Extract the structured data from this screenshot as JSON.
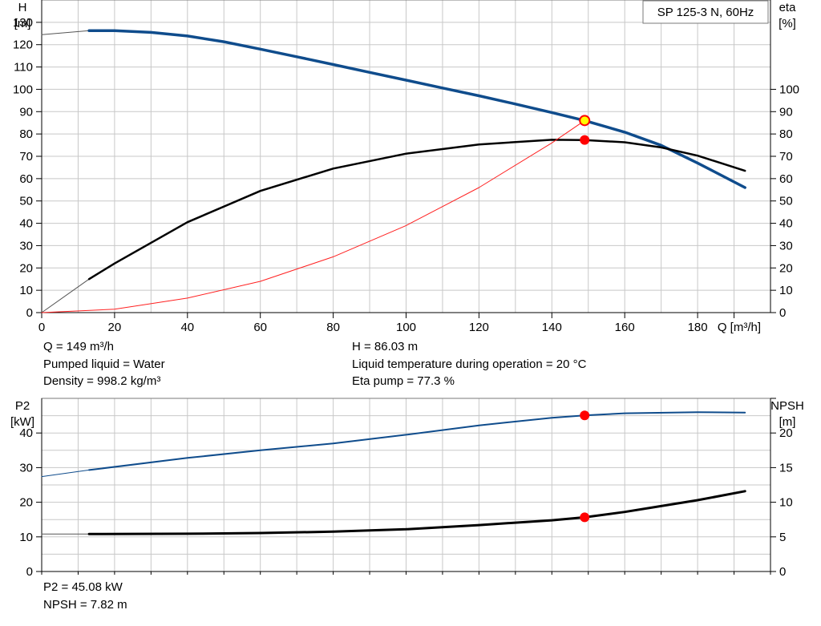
{
  "info": {
    "q": "Q = 149 m³/h",
    "pumped_liquid": "Pumped liquid = Water",
    "density": "Density = 998.2 kg/m³",
    "h": "H = 86.03 m",
    "liquid_temp": "Liquid temperature during operation = 20 °C",
    "eta_pump": "Eta pump = 77.3 %",
    "p2": "P2 = 45.08 kW",
    "npsh": "NPSH = 7.82 m"
  },
  "colors": {
    "head_curve": "#0f4c8c",
    "efficiency_curve": "#000000",
    "system_curve": "#ff2020",
    "duty_point": "#ff0000",
    "duty_marker_fill": "#ffff00",
    "grid": "#c8c8c8"
  },
  "chart_data": [
    {
      "type": "line",
      "title": "SP 125-3 N, 60Hz",
      "xlabel": "Q [m³/h]",
      "ylabel_left": [
        "H",
        "[m]"
      ],
      "ylabel_right": [
        "eta",
        "[%]"
      ],
      "xlim": [
        0,
        200
      ],
      "ylim_left": [
        0,
        140
      ],
      "ylim_right": [
        0,
        140
      ],
      "xticks": [
        0,
        20,
        40,
        60,
        80,
        100,
        120,
        140,
        160,
        180
      ],
      "yticks_left": [
        0,
        10,
        20,
        30,
        40,
        50,
        60,
        70,
        80,
        90,
        100,
        110,
        120,
        130
      ],
      "yticks_right": [
        0,
        10,
        20,
        30,
        40,
        50,
        60,
        70,
        80,
        90,
        100
      ],
      "grid": true,
      "series": [
        {
          "key": "head_ext",
          "axis": "left",
          "style": "thin",
          "x": [
            0,
            13
          ],
          "y": [
            124.5,
            126.3
          ]
        },
        {
          "key": "head",
          "axis": "left",
          "style": "head",
          "x": [
            13,
            20,
            30,
            40,
            50,
            60,
            70,
            80,
            90,
            100,
            110,
            120,
            130,
            140,
            149,
            160,
            170,
            180,
            193
          ],
          "y": [
            126.3,
            126.3,
            125.5,
            123.9,
            121.3,
            118.0,
            114.6,
            111.1,
            107.6,
            104.1,
            100.6,
            97.1,
            93.4,
            89.6,
            86.0,
            80.8,
            74.9,
            67.0,
            56.0
          ]
        },
        {
          "key": "eta_ext",
          "axis": "right",
          "style": "thin",
          "x": [
            0,
            13
          ],
          "y": [
            0,
            15
          ]
        },
        {
          "key": "eta",
          "axis": "right",
          "style": "eta",
          "x": [
            13,
            20,
            40,
            60,
            80,
            100,
            120,
            140,
            149,
            160,
            170,
            180,
            193
          ],
          "y": [
            15.0,
            22.0,
            40.5,
            54.5,
            64.5,
            71.2,
            75.3,
            77.4,
            77.3,
            76.3,
            74.0,
            70.3,
            63.5
          ]
        },
        {
          "key": "system",
          "axis": "left",
          "style": "system",
          "x": [
            0,
            20,
            40,
            60,
            80,
            100,
            120,
            140,
            149
          ],
          "y": [
            0,
            1.5,
            6.5,
            14.0,
            25.0,
            39.0,
            56.0,
            76.0,
            86.0
          ]
        }
      ],
      "points": [
        {
          "key": "duty-head",
          "axis": "left",
          "x": 149,
          "y": 86.03,
          "style": "duty-yellow"
        },
        {
          "key": "duty-eta",
          "axis": "right",
          "x": 149,
          "y": 77.3,
          "style": "duty-red"
        }
      ]
    },
    {
      "type": "line",
      "xlim": [
        0,
        200
      ],
      "ylabel_left": [
        "P2",
        "[kW]"
      ],
      "ylabel_right": [
        "NPSH",
        "[m]"
      ],
      "ylim_left": [
        0,
        50
      ],
      "ylim_right": [
        0,
        25
      ],
      "yticks_left": [
        0,
        10,
        20,
        30,
        40
      ],
      "yticks_right": [
        0,
        5,
        10,
        15,
        20
      ],
      "grid": true,
      "series": [
        {
          "key": "p2_ext",
          "axis": "left",
          "style": "thin-blue",
          "x": [
            0,
            13
          ],
          "y": [
            27.4,
            29.3
          ]
        },
        {
          "key": "p2",
          "axis": "left",
          "style": "p2",
          "x": [
            13,
            40,
            60,
            80,
            100,
            120,
            140,
            149,
            160,
            180,
            193
          ],
          "y": [
            29.3,
            32.8,
            35.0,
            37.0,
            39.5,
            42.2,
            44.4,
            45.08,
            45.7,
            46.0,
            45.9
          ]
        },
        {
          "key": "npsh_ext",
          "axis": "right",
          "style": "thin",
          "x": [
            0,
            13
          ],
          "y": [
            5.4,
            5.4
          ]
        },
        {
          "key": "npsh",
          "axis": "right",
          "style": "npsh",
          "x": [
            13,
            40,
            60,
            80,
            100,
            120,
            140,
            149,
            160,
            180,
            193
          ],
          "y": [
            5.4,
            5.45,
            5.55,
            5.75,
            6.1,
            6.7,
            7.4,
            7.82,
            8.6,
            10.3,
            11.6
          ]
        }
      ],
      "points": [
        {
          "key": "duty-p2",
          "axis": "left",
          "x": 149,
          "y": 45.08,
          "style": "duty-red"
        },
        {
          "key": "duty-npsh",
          "axis": "right",
          "x": 149,
          "y": 7.82,
          "style": "duty-red"
        }
      ]
    }
  ]
}
